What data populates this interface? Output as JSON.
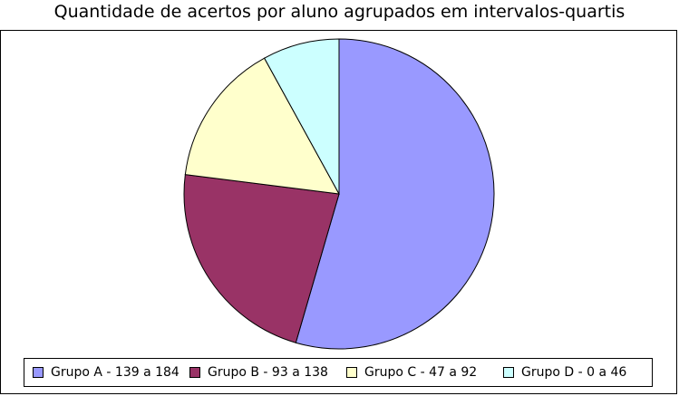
{
  "chart_data": {
    "type": "pie",
    "title": "Quantidade de acertos por aluno agrupados em intervalos-quartis",
    "categories": [
      "Grupo A - 139 a 184",
      "Grupo B - 93 a 138",
      "Grupo C - 47 a 92",
      "Grupo D - 0 a 46"
    ],
    "values": [
      54.5,
      22.5,
      15.0,
      8.0
    ],
    "colors": [
      "#9999ff",
      "#993366",
      "#ffffcc",
      "#ccffff"
    ],
    "start_angle_deg": 90,
    "direction": "clockwise",
    "legend_position": "bottom"
  }
}
